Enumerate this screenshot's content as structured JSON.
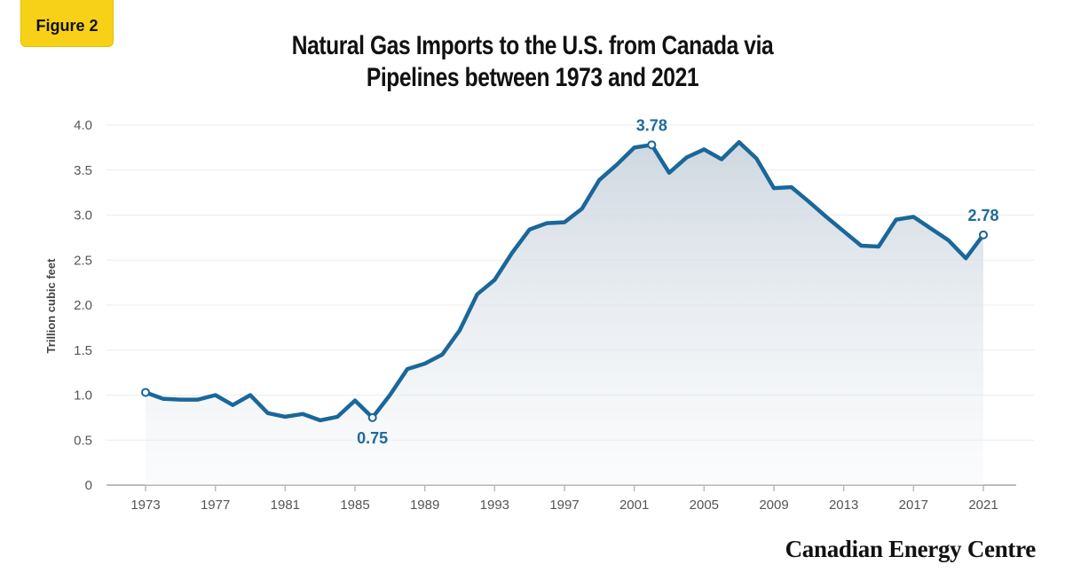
{
  "badge": "Figure 2",
  "title_line1": "Natural Gas Imports to the U.S. from Canada via",
  "title_line2": "Pipelines between 1973 and 2021",
  "logo": "Canadian Energy Centre",
  "chart_data": {
    "type": "area",
    "title": "Natural Gas Imports to the U.S. from Canada via Pipelines between 1973 and 2021",
    "xlabel": "",
    "ylabel": "Trillion cubic feet",
    "ylim": [
      0,
      4.0
    ],
    "yticks": [
      "0",
      "0.5",
      "1.0",
      "1.5",
      "2.0",
      "2.5",
      "3.0",
      "3.5",
      "4.0"
    ],
    "xticks": [
      "1973",
      "1977",
      "1981",
      "1985",
      "1989",
      "1993",
      "1997",
      "2001",
      "2005",
      "2009",
      "2013",
      "2017",
      "2021"
    ],
    "grid": true,
    "line_color": "#1a6799",
    "x": [
      1973,
      1974,
      1975,
      1976,
      1977,
      1978,
      1979,
      1980,
      1981,
      1982,
      1983,
      1984,
      1985,
      1986,
      1987,
      1988,
      1989,
      1990,
      1991,
      1992,
      1993,
      1994,
      1995,
      1996,
      1997,
      1998,
      1999,
      2000,
      2001,
      2002,
      2003,
      2004,
      2005,
      2006,
      2007,
      2008,
      2009,
      2010,
      2011,
      2012,
      2013,
      2014,
      2015,
      2016,
      2017,
      2018,
      2019,
      2020,
      2021
    ],
    "values": [
      1.03,
      0.96,
      0.95,
      0.95,
      1.0,
      0.89,
      1.0,
      0.8,
      0.76,
      0.79,
      0.72,
      0.76,
      0.94,
      0.75,
      1.0,
      1.29,
      1.35,
      1.45,
      1.72,
      2.12,
      2.28,
      2.58,
      2.84,
      2.91,
      2.92,
      3.07,
      3.39,
      3.56,
      3.75,
      3.78,
      3.47,
      3.64,
      3.73,
      3.62,
      3.81,
      3.63,
      3.3,
      3.31,
      3.15,
      2.98,
      2.82,
      2.66,
      2.65,
      2.95,
      2.98,
      2.85,
      2.72,
      2.52,
      2.78
    ],
    "annotations": [
      {
        "x": 1986,
        "label": "0.75",
        "position": "below"
      },
      {
        "x": 2002,
        "label": "3.78",
        "position": "above"
      },
      {
        "x": 2021,
        "label": "2.78",
        "position": "above"
      }
    ],
    "markers_at": [
      1973,
      1986,
      2002,
      2021
    ]
  }
}
